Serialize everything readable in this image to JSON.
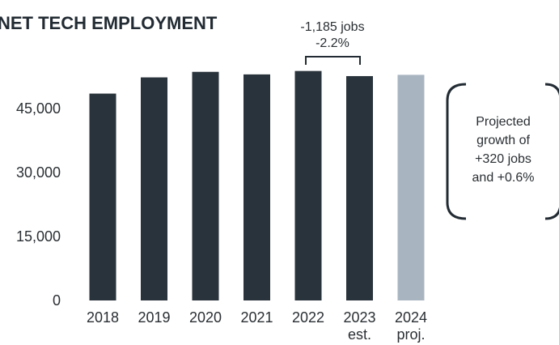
{
  "chart_data": {
    "type": "bar",
    "title": "NET TECH EMPLOYMENT",
    "categories": [
      "2018",
      "2019",
      "2020",
      "2021",
      "2022",
      "2023",
      "2024"
    ],
    "category_sublabels": [
      "",
      "",
      "",
      "",
      "",
      "est.",
      "proj."
    ],
    "values": [
      48500,
      52300,
      53600,
      53000,
      53800,
      52600,
      52900
    ],
    "projected_index": 6,
    "ylim": [
      0,
      60000
    ],
    "yticks": [
      0,
      15000,
      30000,
      45000
    ],
    "ytick_labels": [
      "0",
      "15,000",
      "30,000",
      "45,000"
    ],
    "colors": {
      "actual": "#29333b",
      "projected": "#a8b5c1"
    },
    "annotations": {
      "change_line1": "-1,185 jobs",
      "change_line2": "-2.2%",
      "projection_lines": [
        "Projected",
        "growth of",
        "+320 jobs",
        "and +0.6%"
      ]
    },
    "grid": false,
    "legend": "none"
  }
}
